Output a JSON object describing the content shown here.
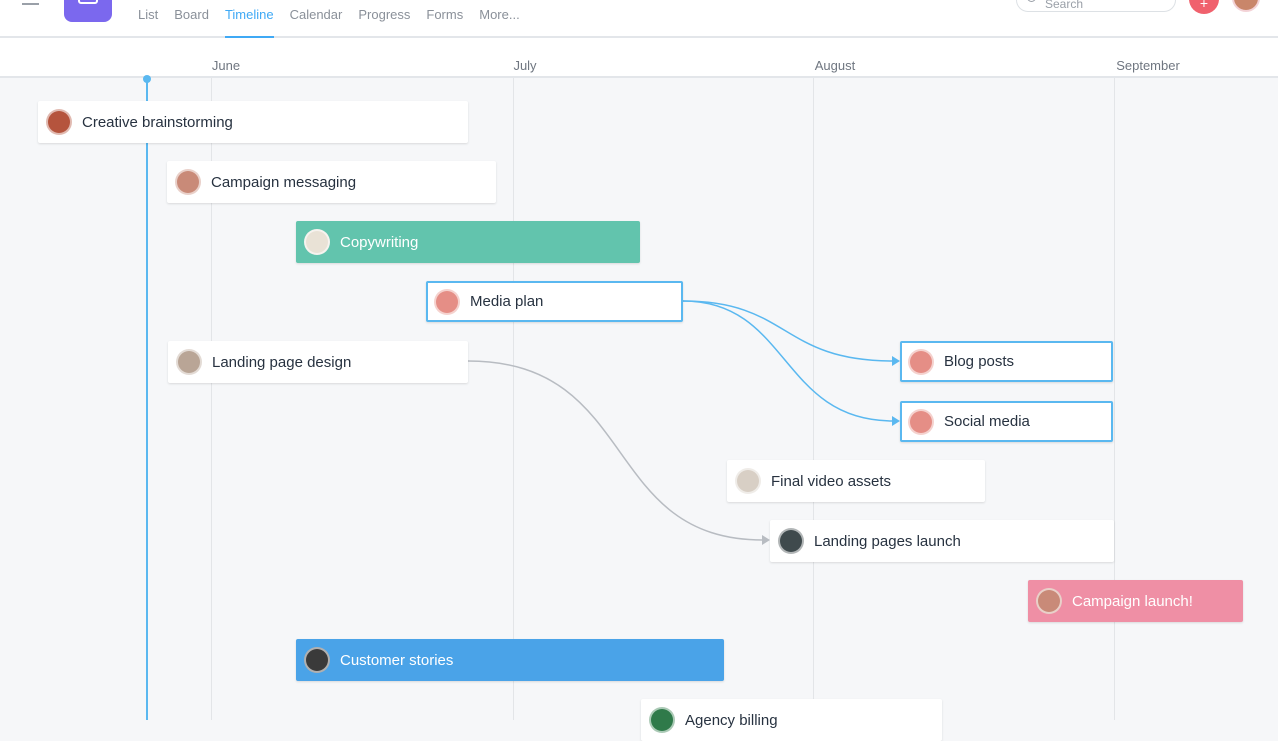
{
  "nav": {
    "tabs": [
      "List",
      "Board",
      "Timeline",
      "Calendar",
      "Progress",
      "Forms",
      "More..."
    ],
    "active": "Timeline"
  },
  "search": {
    "placeholder": "Search"
  },
  "add_button": "+",
  "months": [
    "June",
    "July",
    "August",
    "September"
  ],
  "tasks": [
    {
      "name": "Creative brainstorming",
      "style": "white",
      "avatar": "#b5543d"
    },
    {
      "name": "Campaign messaging",
      "style": "white",
      "avatar": "#c98a78"
    },
    {
      "name": "Copywriting",
      "style": "#62c4ad",
      "avatar": "#e9e2d6"
    },
    {
      "name": "Media plan",
      "style": "selected",
      "avatar": "#e58e86"
    },
    {
      "name": "Landing page design",
      "style": "white",
      "avatar": "#b9a596"
    },
    {
      "name": "Blog posts",
      "style": "selected",
      "avatar": "#e58e86"
    },
    {
      "name": "Social media",
      "style": "selected",
      "avatar": "#e58e86"
    },
    {
      "name": "Final video assets",
      "style": "white",
      "avatar": "#d8cfc5"
    },
    {
      "name": "Landing pages launch",
      "style": "white",
      "avatar": "#3f4a4d"
    },
    {
      "name": "Campaign launch!",
      "style": "#ef8fa5",
      "avatar": "#c98a78"
    },
    {
      "name": "Customer stories",
      "style": "#4aa3e8",
      "avatar": "#3a3a3a"
    },
    {
      "name": "Agency billing",
      "style": "white",
      "avatar": "#2f7a4a"
    }
  ],
  "colors": {
    "accent": "#3fa9f5",
    "dependency": "#5ab8f0",
    "dependency_muted": "#b8bcc2"
  }
}
